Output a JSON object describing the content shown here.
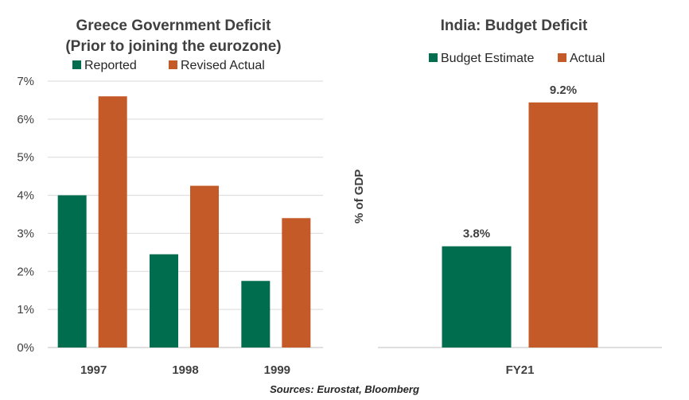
{
  "colors": {
    "green": "#006E4E",
    "orange": "#C45A28",
    "grid": "#D9D9D9",
    "axis": "#BFBFBF"
  },
  "chart_data": [
    {
      "type": "bar",
      "title_lines": [
        "Greece Government Deficit",
        "(Prior to joining the eurozone)"
      ],
      "categories": [
        "1997",
        "1998",
        "1999"
      ],
      "series": [
        {
          "name": "Reported",
          "values": [
            4.0,
            2.45,
            1.75
          ],
          "color": "#006E4E"
        },
        {
          "name": "Revised Actual",
          "values": [
            6.6,
            4.25,
            3.4
          ],
          "color": "#C45A28"
        }
      ],
      "ylim": [
        0,
        7
      ],
      "yticks": [
        0,
        1,
        2,
        3,
        4,
        5,
        6,
        7
      ],
      "ytick_labels": [
        "0%",
        "1%",
        "2%",
        "3%",
        "4%",
        "5%",
        "6%",
        "7%"
      ],
      "grid": true,
      "legend": "top"
    },
    {
      "type": "bar",
      "title_lines": [
        "India: Budget Deficit"
      ],
      "categories": [
        "FY21"
      ],
      "series": [
        {
          "name": "Budget Estimate",
          "values": [
            3.8
          ],
          "color": "#006E4E",
          "label": "3.8%"
        },
        {
          "name": "Actual",
          "values": [
            9.2
          ],
          "color": "#C45A28",
          "label": "9.2%"
        }
      ],
      "ylim": [
        0,
        10
      ],
      "ylabel": "% of GDP",
      "grid": false,
      "legend": "top"
    }
  ],
  "source": "Sources: Eurostat, Bloomberg"
}
